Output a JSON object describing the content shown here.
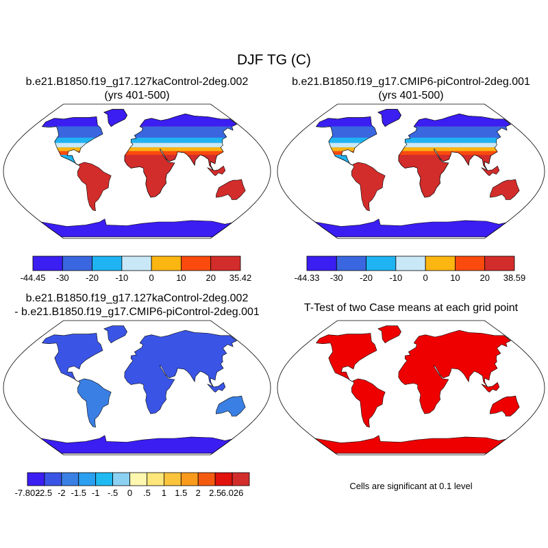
{
  "figure": {
    "title": "DJF TG (C)",
    "footnote": "Cells are significant at 0.1 level"
  },
  "chart_data": [
    {
      "type": "heatmap",
      "id": "case1",
      "title": "b.e21.B1850.f19_g17.127kaControl-2deg.002",
      "subtitle": "(yrs 401-500)",
      "projection": "Robinson",
      "colorbar": {
        "levels": [
          -30,
          -20,
          -10,
          0,
          10,
          20
        ],
        "tick_labels": [
          "-44.45",
          "-30",
          "-20",
          "-10",
          "0",
          "10",
          "20",
          "35.42"
        ],
        "min": -44.45,
        "max": 35.42,
        "colors": [
          "#3b1ef2",
          "#3a67e0",
          "#1fb3f2",
          "#c9e8f7",
          "#fcb612",
          "#fa4a0e",
          "#d22d2b"
        ]
      }
    },
    {
      "type": "heatmap",
      "id": "case2",
      "title": "b.e21.B1850.f19_g17.CMIP6-piControl-2deg.001",
      "subtitle": "(yrs 401-500)",
      "projection": "Robinson",
      "colorbar": {
        "levels": [
          -30,
          -20,
          -10,
          0,
          10,
          20
        ],
        "tick_labels": [
          "-44.33",
          "-30",
          "-20",
          "-10",
          "0",
          "10",
          "20",
          "38.59"
        ],
        "min": -44.33,
        "max": 38.59,
        "colors": [
          "#3b1ef2",
          "#3a67e0",
          "#1fb3f2",
          "#c9e8f7",
          "#fcb612",
          "#fa4a0e",
          "#d22d2b"
        ]
      }
    },
    {
      "type": "heatmap",
      "id": "diff",
      "title": "b.e21.B1850.f19_g17.127kaControl-2deg.002",
      "subtitle": "- b.e21.B1850.f19_g17.CMIP6-piControl-2deg.001",
      "projection": "Robinson",
      "colorbar": {
        "levels": [
          -2.5,
          -2,
          -1.5,
          -1,
          -0.5,
          0,
          0.5,
          1,
          1.5,
          2,
          2.5
        ],
        "tick_labels": [
          "-7.802",
          "-2.5",
          "-2",
          "-1.5",
          "-1",
          "-.5",
          "0",
          ".5",
          "1",
          "1.5",
          "2",
          "2.5",
          "6.026"
        ],
        "min": -7.802,
        "max": 6.026,
        "colors": [
          "#3b1ef2",
          "#3a55e6",
          "#3a7fe3",
          "#2b9ff0",
          "#1fbaf2",
          "#8cd1f2",
          "#fdf7b0",
          "#fde67a",
          "#fbc43c",
          "#f99a1c",
          "#f55a11",
          "#e0120b",
          "#d22d2b"
        ]
      }
    },
    {
      "type": "heatmap",
      "id": "ttest",
      "title": "T-Test of two Case means at each grid point",
      "projection": "Robinson",
      "significant_color": "#ee0000"
    }
  ]
}
